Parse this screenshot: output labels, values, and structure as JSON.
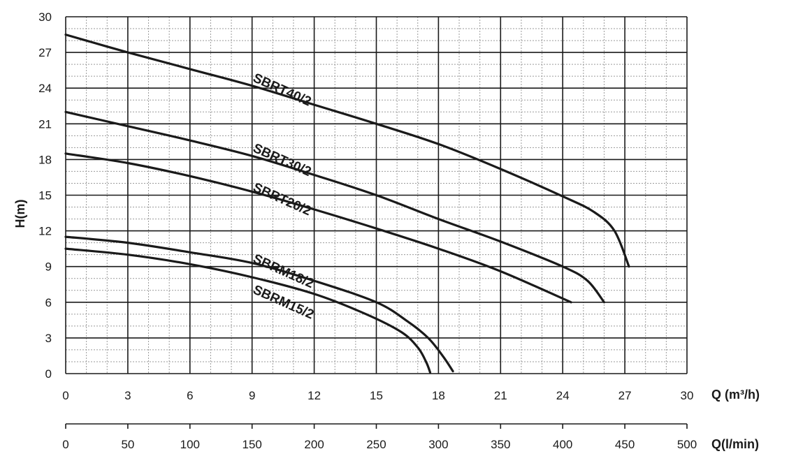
{
  "chart_data": {
    "type": "line",
    "title": "",
    "xlabel": "Q (m³/h)",
    "ylabel": "H(m)",
    "xlim": [
      0,
      30
    ],
    "ylim": [
      0,
      30
    ],
    "x_ticks": [
      "0",
      "3",
      "6",
      "9",
      "12",
      "15",
      "18",
      "21",
      "24",
      "27",
      "30"
    ],
    "y_ticks": [
      "0",
      "3",
      "6",
      "9",
      "12",
      "15",
      "18",
      "21",
      "24",
      "27",
      "30"
    ],
    "secondary_x_axis": {
      "label": "Q(l/min)",
      "lim": [
        0,
        500
      ],
      "ticks": [
        "0",
        "50",
        "100",
        "150",
        "200",
        "250",
        "300",
        "350",
        "400",
        "450",
        "500"
      ]
    },
    "grid": true,
    "colors": {
      "curve": "#1a1a1a",
      "grid": "#1a1a1a",
      "minor_grid": "#9a9a9a"
    },
    "series": [
      {
        "name": "SBRT40/2",
        "x": [
          0,
          3,
          6,
          9,
          12,
          15,
          18,
          21,
          24,
          25.5,
          26.5,
          27.2
        ],
        "y": [
          28.5,
          27.0,
          25.6,
          24.2,
          22.6,
          21.0,
          19.3,
          17.2,
          14.9,
          13.6,
          12.0,
          9.0
        ]
      },
      {
        "name": "SBRT30/2",
        "x": [
          0,
          3,
          6,
          9,
          12,
          15,
          18,
          21,
          24,
          25.2,
          26.0
        ],
        "y": [
          22.0,
          20.8,
          19.6,
          18.3,
          16.7,
          15.0,
          13.0,
          11.1,
          9.0,
          7.8,
          6.0
        ]
      },
      {
        "name": "SBRT20/2",
        "x": [
          0,
          3,
          6,
          9,
          12,
          15,
          18,
          21,
          24.4
        ],
        "y": [
          18.5,
          17.7,
          16.6,
          15.3,
          13.8,
          12.2,
          10.5,
          8.6,
          6.0
        ]
      },
      {
        "name": "SBRM18/2",
        "x": [
          0,
          3,
          6,
          9,
          12,
          15,
          16.5,
          17.5,
          18.2,
          18.7
        ],
        "y": [
          11.5,
          11.0,
          10.2,
          9.3,
          7.8,
          6.0,
          4.4,
          3.0,
          1.5,
          0.2
        ]
      },
      {
        "name": "SBRM15/2",
        "x": [
          0,
          3,
          6,
          9,
          12,
          14.5,
          16.2,
          17.0,
          17.4,
          17.6
        ],
        "y": [
          10.5,
          10.0,
          9.2,
          8.1,
          6.7,
          5.0,
          3.5,
          2.2,
          1.0,
          0.1
        ]
      }
    ]
  }
}
